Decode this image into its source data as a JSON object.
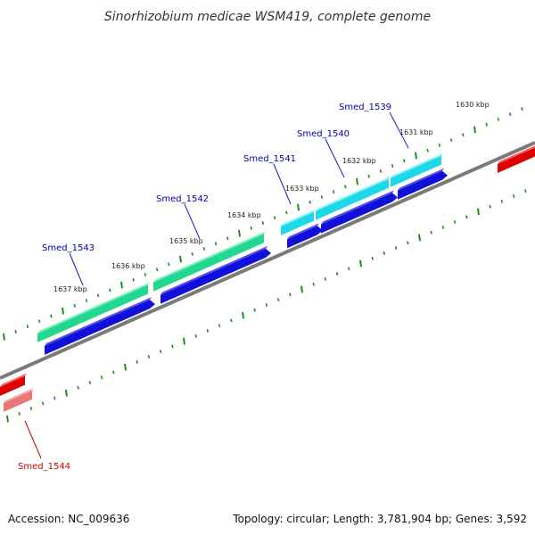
{
  "title": "Sinorhizobium medicae WSM419, complete genome",
  "footer": {
    "accession": "Accession: NC_009636",
    "topology": "Topology: circular; Length: 3,781,904 bp; Genes: 3,592"
  },
  "kbp_labels": [
    "1637 kbp",
    "1636 kbp",
    "1635 kbp",
    "1634 kbp",
    "1633 kbp",
    "1632 kbp",
    "1631 kbp",
    "1630 kbp"
  ],
  "genes": [
    {
      "name": "Smed_1539",
      "color": "#0000aa"
    },
    {
      "name": "Smed_1540",
      "color": "#0000aa"
    },
    {
      "name": "Smed_1541",
      "color": "#0000aa"
    },
    {
      "name": "Smed_1542",
      "color": "#0000aa"
    },
    {
      "name": "Smed_1543",
      "color": "#0000aa"
    },
    {
      "name": "Smed_1544",
      "color": "#cc0000"
    }
  ],
  "colors": {
    "backbone": "#7a7a7a",
    "tick": "#228b22",
    "cds_blue": "#1010d8",
    "gene_cyan": "#1cd8e8",
    "gene_green": "#22d890",
    "gene_red": "#dd0000",
    "gene_pink": "#e87878",
    "leader_blue": "#1a1acc",
    "leader_red": "#cc0000"
  }
}
